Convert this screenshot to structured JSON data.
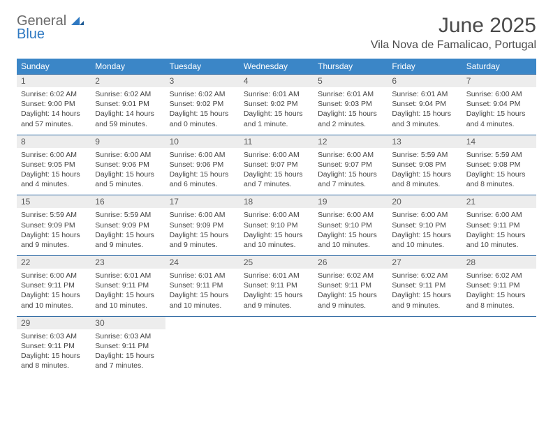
{
  "logo": {
    "line1": "General",
    "line2": "Blue"
  },
  "title": "June 2025",
  "location": "Vila Nova de Famalicao, Portugal",
  "colors": {
    "header_bg": "#3b86c7",
    "week_border": "#2f6aa3",
    "date_bg": "#ededed",
    "logo_blue": "#2f79c2",
    "logo_gray": "#6b6b6b"
  },
  "daynames": [
    "Sunday",
    "Monday",
    "Tuesday",
    "Wednesday",
    "Thursday",
    "Friday",
    "Saturday"
  ],
  "weeks": [
    [
      {
        "date": "1",
        "sunrise": "Sunrise: 6:02 AM",
        "sunset": "Sunset: 9:00 PM",
        "daylight1": "Daylight: 14 hours",
        "daylight2": "and 57 minutes."
      },
      {
        "date": "2",
        "sunrise": "Sunrise: 6:02 AM",
        "sunset": "Sunset: 9:01 PM",
        "daylight1": "Daylight: 14 hours",
        "daylight2": "and 59 minutes."
      },
      {
        "date": "3",
        "sunrise": "Sunrise: 6:02 AM",
        "sunset": "Sunset: 9:02 PM",
        "daylight1": "Daylight: 15 hours",
        "daylight2": "and 0 minutes."
      },
      {
        "date": "4",
        "sunrise": "Sunrise: 6:01 AM",
        "sunset": "Sunset: 9:02 PM",
        "daylight1": "Daylight: 15 hours",
        "daylight2": "and 1 minute."
      },
      {
        "date": "5",
        "sunrise": "Sunrise: 6:01 AM",
        "sunset": "Sunset: 9:03 PM",
        "daylight1": "Daylight: 15 hours",
        "daylight2": "and 2 minutes."
      },
      {
        "date": "6",
        "sunrise": "Sunrise: 6:01 AM",
        "sunset": "Sunset: 9:04 PM",
        "daylight1": "Daylight: 15 hours",
        "daylight2": "and 3 minutes."
      },
      {
        "date": "7",
        "sunrise": "Sunrise: 6:00 AM",
        "sunset": "Sunset: 9:04 PM",
        "daylight1": "Daylight: 15 hours",
        "daylight2": "and 4 minutes."
      }
    ],
    [
      {
        "date": "8",
        "sunrise": "Sunrise: 6:00 AM",
        "sunset": "Sunset: 9:05 PM",
        "daylight1": "Daylight: 15 hours",
        "daylight2": "and 4 minutes."
      },
      {
        "date": "9",
        "sunrise": "Sunrise: 6:00 AM",
        "sunset": "Sunset: 9:06 PM",
        "daylight1": "Daylight: 15 hours",
        "daylight2": "and 5 minutes."
      },
      {
        "date": "10",
        "sunrise": "Sunrise: 6:00 AM",
        "sunset": "Sunset: 9:06 PM",
        "daylight1": "Daylight: 15 hours",
        "daylight2": "and 6 minutes."
      },
      {
        "date": "11",
        "sunrise": "Sunrise: 6:00 AM",
        "sunset": "Sunset: 9:07 PM",
        "daylight1": "Daylight: 15 hours",
        "daylight2": "and 7 minutes."
      },
      {
        "date": "12",
        "sunrise": "Sunrise: 6:00 AM",
        "sunset": "Sunset: 9:07 PM",
        "daylight1": "Daylight: 15 hours",
        "daylight2": "and 7 minutes."
      },
      {
        "date": "13",
        "sunrise": "Sunrise: 5:59 AM",
        "sunset": "Sunset: 9:08 PM",
        "daylight1": "Daylight: 15 hours",
        "daylight2": "and 8 minutes."
      },
      {
        "date": "14",
        "sunrise": "Sunrise: 5:59 AM",
        "sunset": "Sunset: 9:08 PM",
        "daylight1": "Daylight: 15 hours",
        "daylight2": "and 8 minutes."
      }
    ],
    [
      {
        "date": "15",
        "sunrise": "Sunrise: 5:59 AM",
        "sunset": "Sunset: 9:09 PM",
        "daylight1": "Daylight: 15 hours",
        "daylight2": "and 9 minutes."
      },
      {
        "date": "16",
        "sunrise": "Sunrise: 5:59 AM",
        "sunset": "Sunset: 9:09 PM",
        "daylight1": "Daylight: 15 hours",
        "daylight2": "and 9 minutes."
      },
      {
        "date": "17",
        "sunrise": "Sunrise: 6:00 AM",
        "sunset": "Sunset: 9:09 PM",
        "daylight1": "Daylight: 15 hours",
        "daylight2": "and 9 minutes."
      },
      {
        "date": "18",
        "sunrise": "Sunrise: 6:00 AM",
        "sunset": "Sunset: 9:10 PM",
        "daylight1": "Daylight: 15 hours",
        "daylight2": "and 10 minutes."
      },
      {
        "date": "19",
        "sunrise": "Sunrise: 6:00 AM",
        "sunset": "Sunset: 9:10 PM",
        "daylight1": "Daylight: 15 hours",
        "daylight2": "and 10 minutes."
      },
      {
        "date": "20",
        "sunrise": "Sunrise: 6:00 AM",
        "sunset": "Sunset: 9:10 PM",
        "daylight1": "Daylight: 15 hours",
        "daylight2": "and 10 minutes."
      },
      {
        "date": "21",
        "sunrise": "Sunrise: 6:00 AM",
        "sunset": "Sunset: 9:11 PM",
        "daylight1": "Daylight: 15 hours",
        "daylight2": "and 10 minutes."
      }
    ],
    [
      {
        "date": "22",
        "sunrise": "Sunrise: 6:00 AM",
        "sunset": "Sunset: 9:11 PM",
        "daylight1": "Daylight: 15 hours",
        "daylight2": "and 10 minutes."
      },
      {
        "date": "23",
        "sunrise": "Sunrise: 6:01 AM",
        "sunset": "Sunset: 9:11 PM",
        "daylight1": "Daylight: 15 hours",
        "daylight2": "and 10 minutes."
      },
      {
        "date": "24",
        "sunrise": "Sunrise: 6:01 AM",
        "sunset": "Sunset: 9:11 PM",
        "daylight1": "Daylight: 15 hours",
        "daylight2": "and 10 minutes."
      },
      {
        "date": "25",
        "sunrise": "Sunrise: 6:01 AM",
        "sunset": "Sunset: 9:11 PM",
        "daylight1": "Daylight: 15 hours",
        "daylight2": "and 9 minutes."
      },
      {
        "date": "26",
        "sunrise": "Sunrise: 6:02 AM",
        "sunset": "Sunset: 9:11 PM",
        "daylight1": "Daylight: 15 hours",
        "daylight2": "and 9 minutes."
      },
      {
        "date": "27",
        "sunrise": "Sunrise: 6:02 AM",
        "sunset": "Sunset: 9:11 PM",
        "daylight1": "Daylight: 15 hours",
        "daylight2": "and 9 minutes."
      },
      {
        "date": "28",
        "sunrise": "Sunrise: 6:02 AM",
        "sunset": "Sunset: 9:11 PM",
        "daylight1": "Daylight: 15 hours",
        "daylight2": "and 8 minutes."
      }
    ],
    [
      {
        "date": "29",
        "sunrise": "Sunrise: 6:03 AM",
        "sunset": "Sunset: 9:11 PM",
        "daylight1": "Daylight: 15 hours",
        "daylight2": "and 8 minutes."
      },
      {
        "date": "30",
        "sunrise": "Sunrise: 6:03 AM",
        "sunset": "Sunset: 9:11 PM",
        "daylight1": "Daylight: 15 hours",
        "daylight2": "and 7 minutes."
      },
      null,
      null,
      null,
      null,
      null
    ]
  ]
}
